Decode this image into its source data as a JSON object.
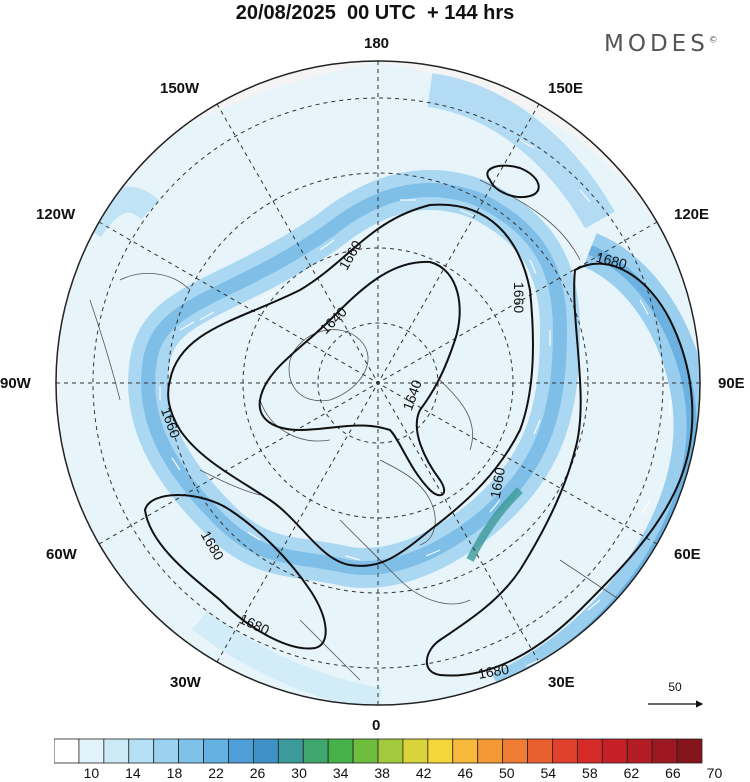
{
  "title": "20/08/2025  00 UTC  + 144 hrs",
  "brand": "MODES",
  "longitude_labels": [
    {
      "id": "180",
      "text": "180"
    },
    {
      "id": "150E",
      "text": "150E"
    },
    {
      "id": "120E",
      "text": "120E"
    },
    {
      "id": "90E",
      "text": "90E"
    },
    {
      "id": "60E",
      "text": "60E"
    },
    {
      "id": "30E",
      "text": "30E"
    },
    {
      "id": "0",
      "text": "0"
    },
    {
      "id": "30W",
      "text": "30W"
    },
    {
      "id": "60W",
      "text": "60W"
    },
    {
      "id": "90W",
      "text": "90W"
    },
    {
      "id": "120W",
      "text": "120W"
    },
    {
      "id": "150W",
      "text": "150W"
    }
  ],
  "contour_labels": [
    "1660",
    "1640",
    "1660",
    "1680",
    "1660",
    "1640",
    "1660",
    "1680",
    "1680",
    "1680"
  ],
  "vector_reference": {
    "value": "50"
  },
  "colorbar": {
    "tick_labels": [
      "10",
      "14",
      "18",
      "22",
      "26",
      "30",
      "34",
      "38",
      "42",
      "46",
      "50",
      "54",
      "58",
      "62",
      "66",
      "70"
    ],
    "colors": [
      "#ffffff",
      "#e3f3fb",
      "#cdeaf8",
      "#b6e0f5",
      "#9bd2f0",
      "#7ec2ea",
      "#63b0e2",
      "#4e9fd8",
      "#3f92c6",
      "#3c9a9a",
      "#3fa66c",
      "#47b24a",
      "#6fbd3f",
      "#a3c93c",
      "#d8d43a",
      "#f5d63b",
      "#f7b93a",
      "#f39a37",
      "#ee7c33",
      "#e85f30",
      "#e1402c",
      "#d62a28",
      "#c62026",
      "#b31c23",
      "#9d1820",
      "#86141c"
    ]
  }
}
